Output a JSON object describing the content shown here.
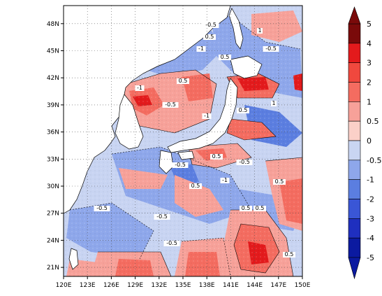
{
  "map": {
    "lon_ticks": [
      "120E",
      "123E",
      "126E",
      "129E",
      "132E",
      "135E",
      "138E",
      "141E",
      "144E",
      "147E",
      "150E"
    ],
    "lat_ticks": [
      "21N",
      "24N",
      "27N",
      "30N",
      "33N",
      "36N",
      "39N",
      "42N",
      "45N",
      "48N"
    ],
    "lon_range": [
      120,
      150
    ],
    "lat_range": [
      20,
      50
    ],
    "grid": "dotted",
    "contour_labels": [
      "-0.5",
      "-1",
      "0.5",
      "1",
      "-0.5",
      "0.5",
      "-1",
      "0.5",
      "-0.5",
      "-1",
      "0.5",
      "1",
      "-0.5",
      "0.5",
      "-0.5",
      "0.5",
      "-1",
      "0.5",
      "-0.5",
      "-0.5",
      "0.5",
      "0.5",
      "-0.5",
      "0.5"
    ]
  },
  "colorbar": {
    "labels": [
      "5",
      "4",
      "3",
      "2",
      "1",
      "0.5",
      "0",
      "-0.5",
      "-1",
      "-2",
      "-3",
      "-4",
      "-5"
    ],
    "colors": [
      "#7a0a0a",
      "#e31a1c",
      "#f0483e",
      "#f46c60",
      "#f7a199",
      "#fbd0c8",
      "#c9d5f2",
      "#8ea7eb",
      "#5b7ee0",
      "#3a56d6",
      "#1f2fbf",
      "#0b1aa0"
    ],
    "arrow_top": "#7a0a0a",
    "arrow_bottom": "#0b1aa0"
  }
}
